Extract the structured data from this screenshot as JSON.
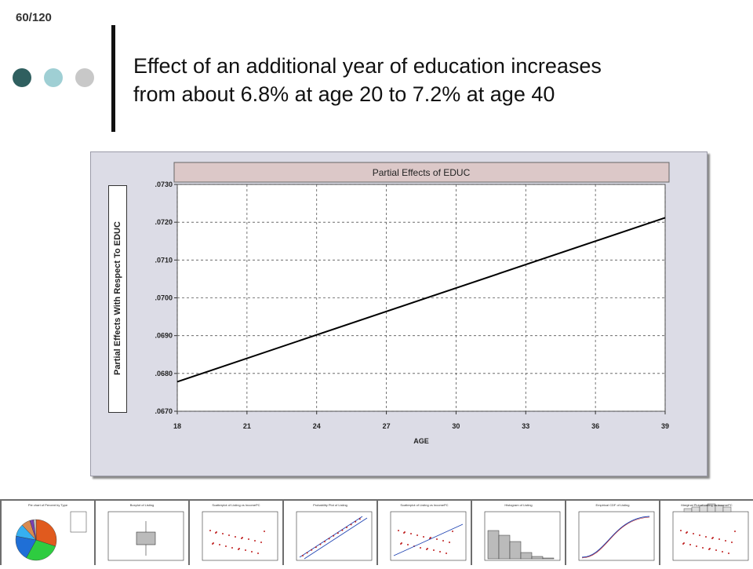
{
  "slide": {
    "number": "60/120"
  },
  "decor": {
    "dot_colors": [
      "#2f5f5f",
      "#9fcfd4",
      "#c8c8c8"
    ],
    "bar_color": "#111111"
  },
  "title": {
    "line1": "Effect of an additional year of education increases",
    "line2": "from about 6.8% at age 20 to 7.2% at age 40"
  },
  "chart_data": {
    "type": "line",
    "title": "Partial Effects of EDUC",
    "xlabel": "AGE",
    "ylabel": "Partial Effects With Respect To EDUC",
    "xlim": [
      18,
      39
    ],
    "ylim": [
      0.067,
      0.073
    ],
    "x_ticks": [
      "18",
      "21",
      "24",
      "27",
      "30",
      "33",
      "36",
      "39"
    ],
    "y_ticks": [
      ".0670",
      ".0680",
      ".0690",
      ".0700",
      ".0710",
      ".0720",
      ".0730"
    ],
    "grid": true,
    "series": [
      {
        "x": [
          18,
          39
        ],
        "y": [
          0.06778,
          0.07212
        ],
        "color": "#000000"
      }
    ],
    "colors": {
      "plot_bg": "#ffffff",
      "frame_bg": "#dcdce6",
      "title_bar": "#dcc8c8"
    }
  },
  "thumbnails": [
    {
      "icon": "pie-chart-thumbnail",
      "title": "Pie chart of Percent by Type"
    },
    {
      "icon": "box-plot-thumbnail",
      "title": "Boxplot of Listing"
    },
    {
      "icon": "scatter-plot-thumbnail",
      "title": "Scatterplot of Listing vs IncomePC"
    },
    {
      "icon": "probability-plot-thumbnail",
      "title": "Probability Plot of Listing"
    },
    {
      "icon": "scatter-regression-thumbnail",
      "title": "Scatterplot of Listing vs IncomePC"
    },
    {
      "icon": "histogram-thumbnail",
      "title": "Histogram of Listing"
    },
    {
      "icon": "empirical-cdf-thumbnail",
      "title": "Empirical CDF of Listing"
    },
    {
      "icon": "marginal-plot-thumbnail",
      "title": "Marginal Plot of Listing vs IncomePC"
    }
  ]
}
